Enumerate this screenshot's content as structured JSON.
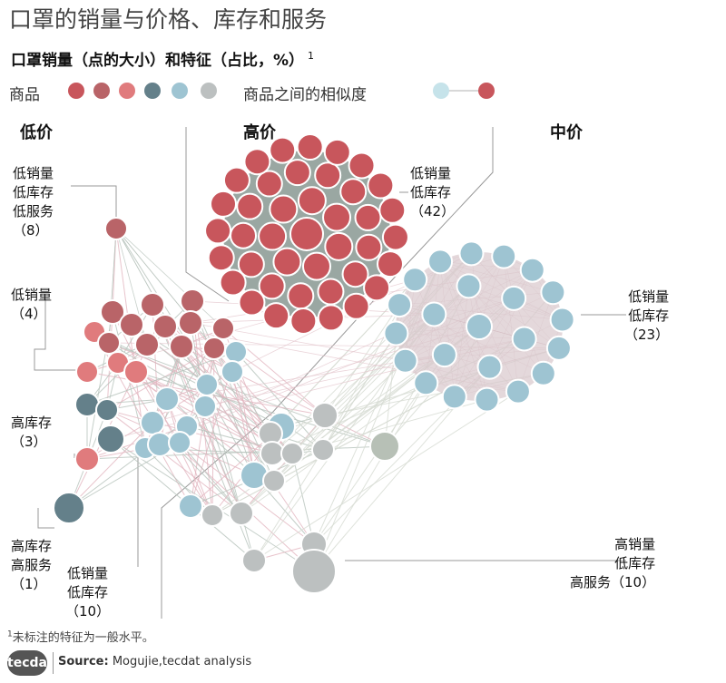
{
  "title": "口罩的销量与价格、库存和服务",
  "subtitle": "口罩销量（点的大小）和特征（占比，%）",
  "subtitle_note": "1",
  "legend": {
    "products_label": "商品",
    "product_colors": [
      "#c8565c",
      "#b96468",
      "#e07b7d",
      "#64808a",
      "#9ec4d2",
      "#bcc0c0"
    ],
    "similarity_label": "商品之间的相似度",
    "similarity_from": "#c6e3ea",
    "similarity_to": "#c8565c"
  },
  "groups": {
    "low": "低价",
    "high": "高价",
    "mid": "中价"
  },
  "annotations": {
    "a1": "低销量\n低库存\n低服务\n（8）",
    "a2": "低销量\n（4）",
    "a3": "高库存\n（3）",
    "a4": "高库存\n高服务\n（1）",
    "a5": "低销量\n低库存\n（10）",
    "a6": "低销量\n低库存\n（42）",
    "a7": "低销量\n低库存\n（23）",
    "a8": "高销量\n低库存\n高服务（10）"
  },
  "footnote_mark": "1",
  "footnote": "未标注的特征为一般水平。",
  "logo": "tecdat",
  "source_label": "Source:",
  "source": "Mogujie,tecdat analysis"
}
